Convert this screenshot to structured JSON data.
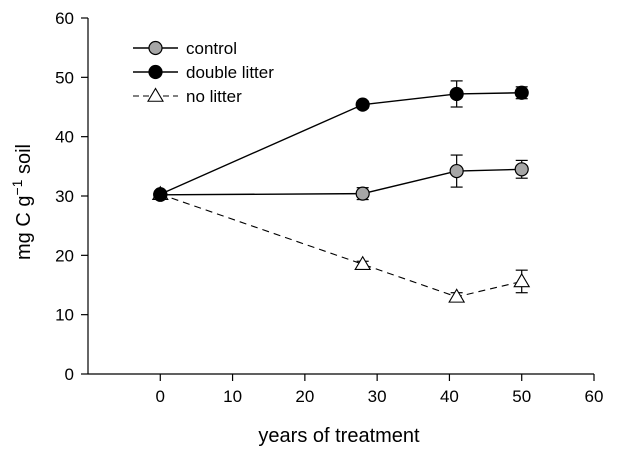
{
  "chart_data": {
    "type": "line",
    "xlabel": "years of treatment",
    "ylabel": {
      "base": "mg C g",
      "sup": "−1",
      "tail": " soil"
    },
    "xlim": [
      -10,
      60
    ],
    "ylim": [
      0,
      60
    ],
    "xticks": [
      0,
      10,
      20,
      30,
      40,
      50,
      60
    ],
    "yticks": [
      0,
      10,
      20,
      30,
      40,
      50,
      60
    ],
    "grid": false,
    "legend_position": "top-left",
    "series": [
      {
        "name": "control",
        "marker": "circle",
        "fill": "#a6a6a6",
        "line": "solid",
        "x": [
          0,
          28,
          41,
          50
        ],
        "y": [
          30.2,
          30.4,
          34.2,
          34.5
        ],
        "err": [
          0,
          1.0,
          2.7,
          1.5
        ]
      },
      {
        "name": "double litter",
        "marker": "circle",
        "fill": "#000000",
        "line": "solid",
        "x": [
          0,
          28,
          41,
          50
        ],
        "y": [
          30.3,
          45.4,
          47.2,
          47.4
        ],
        "err": [
          0,
          0.6,
          2.2,
          1.0
        ]
      },
      {
        "name": "no litter",
        "marker": "triangle",
        "fill": "#ffffff",
        "line": "dashed",
        "x": [
          0,
          28,
          41,
          50
        ],
        "y": [
          30.3,
          18.5,
          13.0,
          15.6
        ],
        "err": [
          0,
          0.5,
          0.7,
          1.9
        ]
      }
    ]
  }
}
